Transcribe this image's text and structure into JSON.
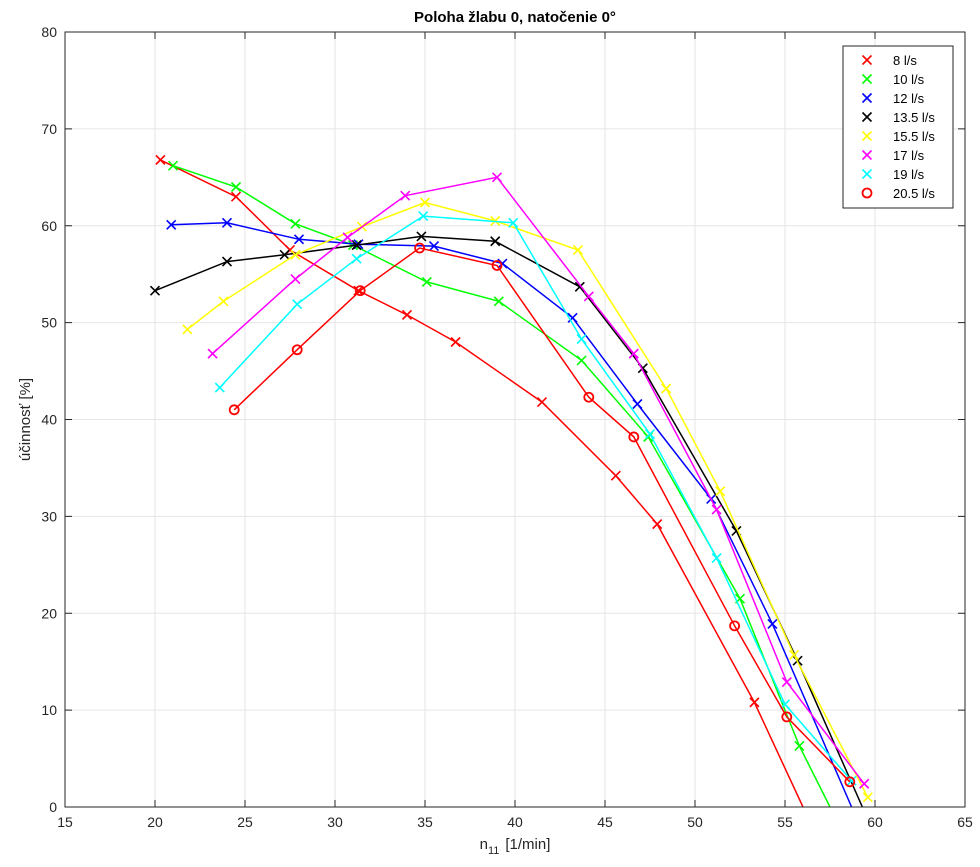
{
  "chart_data": {
    "type": "line",
    "title": "Poloha žlabu 0, natočenie 0°",
    "xlabel": "n",
    "xlabel_subscript": "11",
    "xlabel_unit": "[1/min]",
    "ylabel": "účinnosť [%]",
    "xlim": [
      15,
      65
    ],
    "ylim": [
      0,
      80
    ],
    "xticks": [
      "15",
      "20",
      "25",
      "30",
      "35",
      "40",
      "45",
      "50",
      "55",
      "60",
      "65"
    ],
    "yticks": [
      "0",
      "10",
      "20",
      "30",
      "40",
      "50",
      "60",
      "70",
      "80"
    ],
    "grid": true,
    "legend_position": "top-right",
    "series": [
      {
        "name": "8 l/s",
        "color": "#ff0000",
        "marker": "x",
        "points": [
          [
            20.3,
            66.8
          ],
          [
            24.5,
            63.0
          ],
          [
            27.5,
            57.5
          ],
          [
            31.3,
            53.3
          ],
          [
            34.0,
            50.8
          ],
          [
            36.7,
            48.0
          ],
          [
            41.5,
            41.8
          ],
          [
            45.6,
            34.2
          ],
          [
            47.9,
            29.2
          ],
          [
            53.3,
            10.8
          ],
          [
            56.0,
            0.0
          ]
        ]
      },
      {
        "name": "10 l/s",
        "color": "#00ff00",
        "marker": "x",
        "points": [
          [
            21.0,
            66.2
          ],
          [
            24.5,
            64.0
          ],
          [
            27.8,
            60.2
          ],
          [
            31.0,
            58.0
          ],
          [
            35.1,
            54.2
          ],
          [
            39.1,
            52.2
          ],
          [
            43.7,
            46.1
          ],
          [
            47.4,
            38.2
          ],
          [
            52.5,
            21.5
          ],
          [
            55.8,
            6.3
          ],
          [
            57.5,
            0.0
          ]
        ]
      },
      {
        "name": "12 l/s",
        "color": "#0000ff",
        "marker": "x",
        "points": [
          [
            20.9,
            60.1
          ],
          [
            24.0,
            60.3
          ],
          [
            28.0,
            58.6
          ],
          [
            31.3,
            58.1
          ],
          [
            35.5,
            57.9
          ],
          [
            39.3,
            56.1
          ],
          [
            43.2,
            50.5
          ],
          [
            46.8,
            41.6
          ],
          [
            50.9,
            31.8
          ],
          [
            54.3,
            18.9
          ],
          [
            58.7,
            0.0
          ]
        ]
      },
      {
        "name": "13.5 l/s",
        "color": "#000000",
        "marker": "x",
        "points": [
          [
            20.0,
            53.3
          ],
          [
            24.0,
            56.3
          ],
          [
            27.2,
            57.0
          ],
          [
            31.2,
            58.0
          ],
          [
            34.8,
            58.9
          ],
          [
            38.9,
            58.4
          ],
          [
            43.6,
            53.7
          ],
          [
            47.1,
            45.3
          ],
          [
            52.3,
            28.5
          ],
          [
            55.7,
            15.1
          ],
          [
            59.3,
            0.0
          ]
        ]
      },
      {
        "name": "15.5 l/s",
        "color": "#ffff00",
        "marker": "x",
        "points": [
          [
            21.8,
            49.3
          ],
          [
            23.8,
            52.2
          ],
          [
            27.8,
            57.0
          ],
          [
            31.5,
            59.9
          ],
          [
            35.0,
            62.4
          ],
          [
            38.9,
            60.5
          ],
          [
            43.5,
            57.5
          ],
          [
            48.4,
            43.2
          ],
          [
            51.4,
            32.6
          ],
          [
            55.5,
            15.7
          ],
          [
            59.6,
            1.0
          ]
        ]
      },
      {
        "name": "17 l/s",
        "color": "#ff00ff",
        "marker": "x",
        "points": [
          [
            23.2,
            46.8
          ],
          [
            27.8,
            54.5
          ],
          [
            30.7,
            58.8
          ],
          [
            33.9,
            63.1
          ],
          [
            39.0,
            65.0
          ],
          [
            44.1,
            52.7
          ],
          [
            46.6,
            46.8
          ],
          [
            51.2,
            30.7
          ],
          [
            55.1,
            12.9
          ],
          [
            59.4,
            2.4
          ]
        ]
      },
      {
        "name": "19 l/s",
        "color": "#00ffff",
        "marker": "x",
        "points": [
          [
            23.6,
            43.3
          ],
          [
            27.9,
            51.9
          ],
          [
            31.2,
            56.6
          ],
          [
            34.9,
            61.0
          ],
          [
            39.9,
            60.3
          ],
          [
            43.7,
            48.3
          ],
          [
            47.5,
            38.5
          ],
          [
            51.2,
            25.7
          ],
          [
            55.0,
            10.6
          ],
          [
            58.7,
            2.7
          ]
        ]
      },
      {
        "name": "20.5 l/s",
        "color": "#ff0000",
        "marker": "o",
        "points": [
          [
            24.4,
            41.0
          ],
          [
            27.9,
            47.2
          ],
          [
            31.4,
            53.3
          ],
          [
            34.7,
            57.7
          ],
          [
            39.0,
            55.9
          ],
          [
            44.1,
            42.3
          ],
          [
            46.6,
            38.2
          ],
          [
            52.2,
            18.7
          ],
          [
            55.1,
            9.3
          ],
          [
            58.6,
            2.6
          ]
        ]
      }
    ]
  }
}
